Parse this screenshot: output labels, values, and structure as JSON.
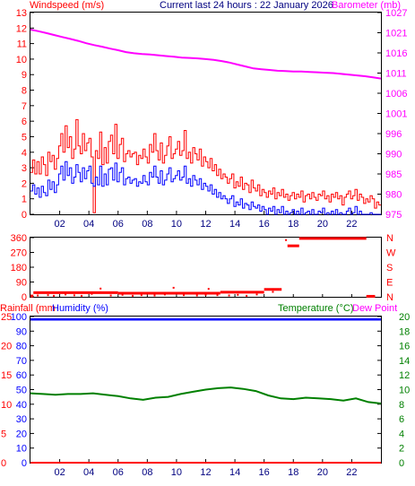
{
  "header": {
    "left": "Windspeed (m/s)",
    "center": "Current last 24 hours : 22 January 2026",
    "right": "Barometer (mb)"
  },
  "colors": {
    "red": "#ff0000",
    "blue": "#0000ff",
    "magenta": "#ff00ff",
    "green": "#008000",
    "black": "#000000"
  },
  "chart_data": [
    {
      "type": "line",
      "x_ticks": [
        "02",
        "04",
        "06",
        "08",
        "10",
        "12",
        "14",
        "16",
        "18",
        "20",
        "22"
      ],
      "y_left_ticks": [
        "0",
        "1",
        "2",
        "3",
        "4",
        "5",
        "6",
        "7",
        "8",
        "9",
        "10",
        "11",
        "12",
        "13"
      ],
      "y_left_range": [
        0,
        13
      ],
      "y_right_ticks": [
        "975",
        "980",
        "985",
        "990",
        "996",
        "1001",
        "1006",
        "1011",
        "1016",
        "1021",
        "1027"
      ],
      "y_right_range": [
        975,
        1027
      ],
      "series": [
        {
          "color": "#ff0000",
          "axis": "left",
          "values": [
            2.7,
            3.5,
            2.6,
            3.4,
            2.6,
            3.7,
            3.2,
            2.5,
            4.0,
            3.4,
            3.8,
            2.9,
            3.6,
            4.4,
            5.2,
            4.0,
            5.7,
            4.3,
            5.0,
            3.6,
            4.2,
            6.1,
            4.4,
            3.9,
            5.2,
            4.1,
            4.6,
            4.9,
            3.7,
            0.1,
            4.1,
            3.6,
            5.3,
            3.2,
            4.3,
            3.3,
            4.7,
            5.1,
            3.9,
            5.8,
            3.6,
            4.5,
            4.9,
            3.4,
            3.9,
            4.1,
            3.7,
            3.9,
            4.0,
            3.2,
            3.8,
            3.6,
            4.2,
            3.7,
            3.3,
            4.5,
            4.0,
            5.2,
            4.1,
            3.5,
            4.6,
            3.3,
            3.8,
            4.4,
            5.0,
            3.6,
            3.9,
            4.2,
            4.7,
            3.8,
            4.1,
            5.4,
            3.6,
            4.0,
            3.3,
            4.3,
            3.9,
            3.5,
            4.2,
            3.1,
            3.7,
            3.4,
            3.0,
            3.6,
            2.8,
            3.2,
            2.5,
            2.9,
            2.3,
            2.6,
            2.4,
            2.0,
            2.3,
            2.6,
            1.7,
            2.1,
            1.8,
            2.4,
            1.6,
            2.0,
            1.9,
            1.4,
            2.2,
            1.7,
            1.5,
            1.9,
            1.2,
            1.6,
            1.4,
            1.1,
            1.5,
            1.3,
            1.7,
            1.0,
            1.4,
            1.2,
            1.6,
            1.1,
            1.3,
            0.9,
            1.2,
            1.4,
            1.0,
            1.3,
            1.1,
            1.5,
            0.8,
            1.2,
            1.3,
            1.0,
            1.4,
            1.1,
            0.9,
            1.3,
            1.2,
            1.5,
            1.0,
            1.2,
            0.8,
            1.3,
            1.1,
            1.4,
            1.0,
            1.2,
            0.6,
            1.1,
            1.3,
            1.5,
            1.0,
            1.2,
            1.6,
            0.9,
            1.3,
            1.1,
            0.7,
            1.0,
            0.8,
            1.2,
            1.0,
            0.4,
            0.8,
            0.6
          ]
        },
        {
          "color": "#0000ff",
          "axis": "left",
          "values": [
            1.5,
            1.9,
            1.3,
            1.7,
            1.1,
            1.8,
            1.4,
            1.2,
            2.2,
            1.6,
            2.1,
            1.4,
            1.9,
            2.6,
            3.1,
            2.2,
            3.4,
            2.5,
            3.0,
            2.0,
            2.4,
            3.2,
            2.7,
            2.1,
            3.0,
            2.3,
            2.8,
            3.1,
            2.0,
            1.8,
            2.4,
            1.9,
            3.1,
            1.8,
            2.6,
            1.9,
            2.9,
            3.0,
            2.2,
            3.3,
            2.1,
            2.7,
            3.0,
            1.9,
            2.3,
            2.4,
            2.0,
            2.2,
            2.3,
            1.8,
            2.1,
            2.0,
            2.5,
            2.1,
            1.9,
            2.7,
            2.4,
            3.1,
            2.4,
            2.0,
            2.8,
            1.9,
            2.2,
            2.6,
            3.0,
            2.1,
            2.3,
            2.5,
            2.8,
            2.2,
            2.4,
            3.1,
            2.0,
            2.3,
            1.8,
            2.5,
            2.2,
            1.9,
            2.3,
            1.6,
            2.0,
            1.8,
            1.5,
            1.9,
            1.3,
            1.6,
            1.1,
            1.4,
            1.0,
            1.2,
            1.0,
            0.7,
            1.0,
            1.2,
            0.5,
            0.8,
            0.6,
            1.0,
            0.4,
            0.7,
            0.6,
            0.3,
            0.8,
            0.5,
            0.4,
            0.6,
            0.2,
            0.5,
            0.3,
            0.0,
            0.4,
            0.2,
            0.5,
            0.0,
            0.3,
            0.1,
            0.5,
            0.0,
            0.2,
            0.0,
            0.1,
            0.3,
            0.0,
            0.2,
            0.0,
            0.4,
            0.0,
            0.1,
            0.2,
            0.0,
            0.3,
            0.0,
            0.0,
            0.2,
            0.1,
            0.4,
            0.0,
            0.1,
            0.0,
            0.2,
            0.0,
            0.3,
            0.0,
            0.1,
            0.0,
            0.0,
            0.2,
            0.4,
            0.0,
            0.1,
            0.5,
            0.0,
            0.2,
            0.0,
            0.0,
            0.0,
            0.0,
            0.1,
            0.0,
            0.0,
            0.0,
            0.0
          ]
        },
        {
          "color": "#ff00ff",
          "axis": "right",
          "values": [
            1022.6,
            1022.2,
            1021.7,
            1021.2,
            1020.7,
            1020.2,
            1019.7,
            1019.1,
            1018.6,
            1018.2,
            1017.7,
            1017.3,
            1016.8,
            1016.5,
            1016.3,
            1016.2,
            1016.0,
            1015.8,
            1015.6,
            1015.4,
            1015.3,
            1015.2,
            1015.0,
            1014.8,
            1014.5,
            1014.1,
            1013.6,
            1013.1,
            1012.6,
            1012.4,
            1012.2,
            1012.0,
            1011.9,
            1011.8,
            1011.8,
            1011.7,
            1011.6,
            1011.5,
            1011.4,
            1011.2,
            1011.0,
            1010.8,
            1010.6,
            1010.3,
            1010.0
          ]
        }
      ]
    },
    {
      "type": "scatter",
      "x_ticks": [
        "02",
        "04",
        "06",
        "08",
        "10",
        "12",
        "14",
        "16",
        "18",
        "20",
        "22"
      ],
      "y_left_ticks": [
        "0",
        "90",
        "180",
        "270",
        "360"
      ],
      "y_left_range": [
        0,
        360
      ],
      "y_right_ticks": [
        "N",
        "E",
        "S",
        "W",
        "N"
      ],
      "segments": [
        {
          "x0": 0.0,
          "x1": 0.2,
          "y": 5
        },
        {
          "x0": 0.2,
          "x1": 6.0,
          "y": 25
        },
        {
          "x0": 6.0,
          "x1": 13.0,
          "y": 22
        },
        {
          "x0": 13.0,
          "x1": 16.0,
          "y": 28
        },
        {
          "x0": 16.0,
          "x1": 17.2,
          "y": 45
        },
        {
          "x0": 17.6,
          "x1": 18.4,
          "y": 310
        },
        {
          "x0": 18.4,
          "x1": 23.0,
          "y": 355
        },
        {
          "x0": 23.0,
          "x1": 23.6,
          "y": 3
        }
      ],
      "points": [
        {
          "x": 0.5,
          "y": 8
        },
        {
          "x": 1.2,
          "y": 10
        },
        {
          "x": 1.6,
          "y": 6
        },
        {
          "x": 2.4,
          "y": 14
        },
        {
          "x": 3.0,
          "y": 9
        },
        {
          "x": 3.5,
          "y": 6
        },
        {
          "x": 4.2,
          "y": 18
        },
        {
          "x": 4.8,
          "y": 50
        },
        {
          "x": 5.5,
          "y": 8
        },
        {
          "x": 6.3,
          "y": 12
        },
        {
          "x": 7.0,
          "y": 6
        },
        {
          "x": 7.6,
          "y": 10
        },
        {
          "x": 8.5,
          "y": 8
        },
        {
          "x": 9.2,
          "y": 14
        },
        {
          "x": 9.8,
          "y": 55
        },
        {
          "x": 10.5,
          "y": 10
        },
        {
          "x": 11.4,
          "y": 8
        },
        {
          "x": 12.0,
          "y": 12
        },
        {
          "x": 12.2,
          "y": 48
        },
        {
          "x": 12.8,
          "y": 10
        },
        {
          "x": 13.6,
          "y": 8
        },
        {
          "x": 14.2,
          "y": 12
        },
        {
          "x": 14.8,
          "y": 6
        },
        {
          "x": 15.5,
          "y": 14
        },
        {
          "x": 16.6,
          "y": 30
        },
        {
          "x": 17.5,
          "y": 345
        }
      ]
    },
    {
      "type": "line",
      "x_ticks": [
        "02",
        "04",
        "06",
        "08",
        "10",
        "12",
        "14",
        "16",
        "18",
        "20",
        "22"
      ],
      "y_left_ticks": [
        "0",
        "10",
        "20",
        "30",
        "40",
        "50",
        "60",
        "70",
        "80",
        "90",
        "100"
      ],
      "y_left_outer_ticks": [
        "0",
        "5",
        "10",
        "15",
        "20",
        "25"
      ],
      "y_left_range": [
        0,
        100
      ],
      "y_right_ticks": [
        "0",
        "2",
        "4",
        "6",
        "8",
        "10",
        "12",
        "14",
        "16",
        "18",
        "20"
      ],
      "y_right_range": [
        0,
        20
      ],
      "labels": {
        "rainfall": "Rainfall (mm",
        "humidity": "Humidity (%)",
        "temperature": "Temperature (°C)",
        "dewpoint": "Dew Point"
      },
      "series": [
        {
          "color": "#0000ff",
          "axis": "left",
          "values": [
            98,
            98,
            98,
            98,
            98,
            98,
            98,
            98,
            98,
            98,
            98,
            98,
            98,
            98,
            98,
            98,
            98,
            98,
            98,
            98,
            98,
            98,
            98,
            98,
            98
          ]
        },
        {
          "color": "#008000",
          "axis": "right",
          "values": [
            9.5,
            9.4,
            9.3,
            9.4,
            9.4,
            9.5,
            9.3,
            9.1,
            8.8,
            8.6,
            8.9,
            9.0,
            9.4,
            9.7,
            10.0,
            10.2,
            10.3,
            10.1,
            9.8,
            9.2,
            8.8,
            8.7,
            8.9,
            8.8,
            8.7,
            8.5,
            8.8,
            8.3,
            8.1
          ]
        },
        {
          "color": "#ff0000",
          "axis": "outer_left",
          "values": [
            0,
            0,
            0,
            0,
            0,
            0,
            0,
            0,
            0,
            0,
            0,
            0,
            0,
            0,
            0,
            0,
            0,
            0,
            0,
            0,
            0,
            0,
            0,
            0,
            0
          ]
        }
      ]
    }
  ]
}
